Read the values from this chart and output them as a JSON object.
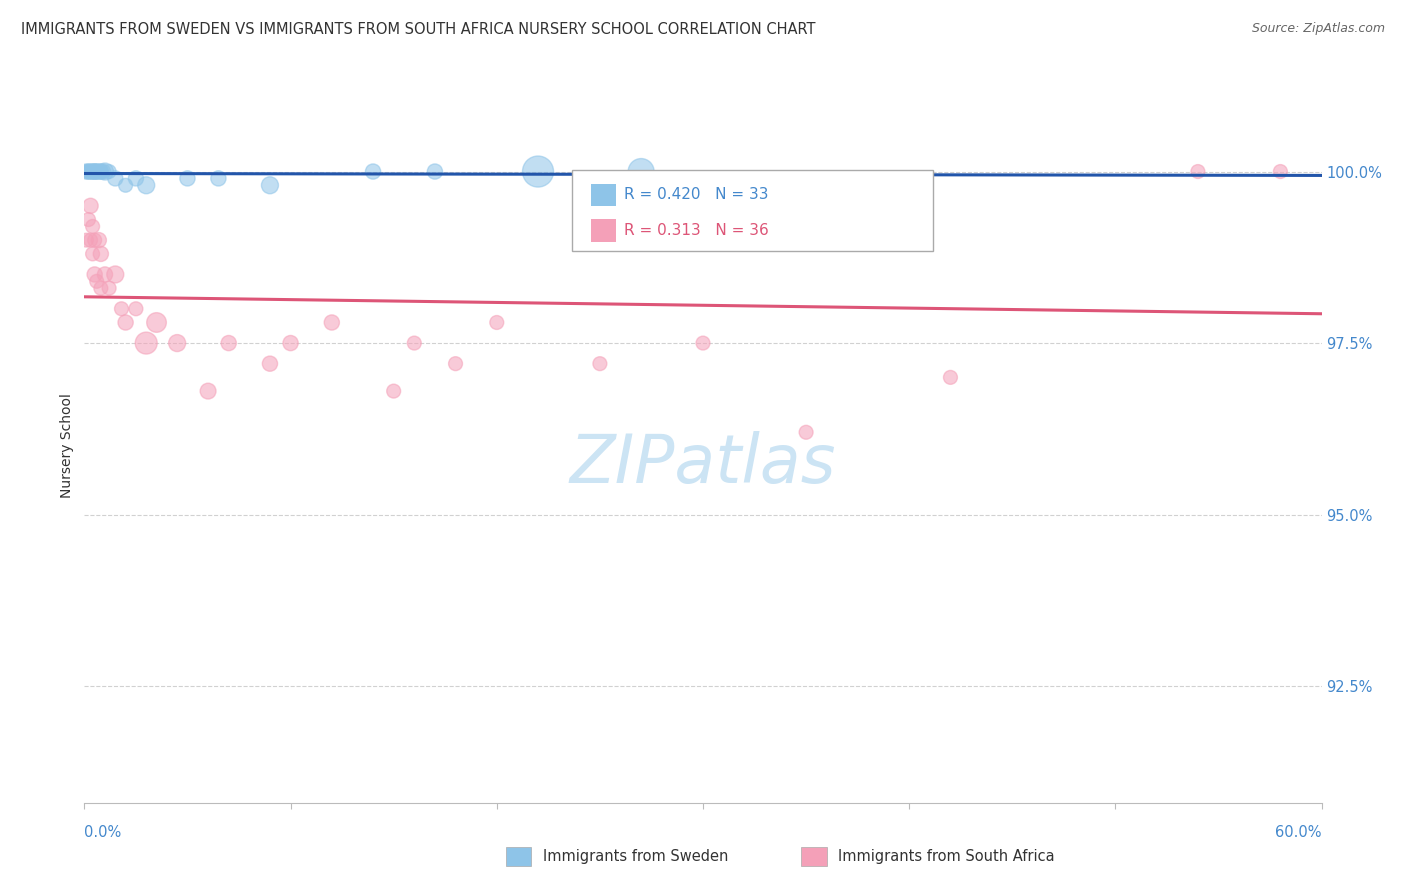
{
  "title": "IMMIGRANTS FROM SWEDEN VS IMMIGRANTS FROM SOUTH AFRICA NURSERY SCHOOL CORRELATION CHART",
  "source": "Source: ZipAtlas.com",
  "ylabel": "Nursery School",
  "ytick_labels": [
    "100.0%",
    "97.5%",
    "95.0%",
    "92.5%"
  ],
  "ytick_values": [
    1.0,
    0.975,
    0.95,
    0.925
  ],
  "xmin": 0.0,
  "xmax": 0.6,
  "ymin": 0.908,
  "ymax": 1.012,
  "legend_r_sweden": "R = 0.420",
  "legend_n_sweden": "N = 33",
  "legend_r_africa": "R = 0.313",
  "legend_n_africa": "N = 36",
  "color_sweden": "#8ec4e8",
  "color_africa": "#f4a0b8",
  "color_sweden_line": "#2255aa",
  "color_africa_line": "#dd5577",
  "watermark_color": "#cce4f4",
  "grid_color": "#cccccc",
  "sweden_x": [
    0.001,
    0.002,
    0.002,
    0.003,
    0.003,
    0.003,
    0.004,
    0.004,
    0.004,
    0.005,
    0.005,
    0.005,
    0.006,
    0.006,
    0.006,
    0.007,
    0.007,
    0.008,
    0.008,
    0.009,
    0.01,
    0.012,
    0.015,
    0.02,
    0.025,
    0.03,
    0.05,
    0.065,
    0.09,
    0.14,
    0.17,
    0.22,
    0.27
  ],
  "sweden_y": [
    1.0,
    1.0,
    1.0,
    1.0,
    1.0,
    1.0,
    1.0,
    1.0,
    1.0,
    1.0,
    1.0,
    1.0,
    1.0,
    1.0,
    1.0,
    1.0,
    1.0,
    1.0,
    1.0,
    1.0,
    1.0,
    1.0,
    0.999,
    0.998,
    0.999,
    0.998,
    0.999,
    0.999,
    0.998,
    1.0,
    1.0,
    1.0,
    1.0
  ],
  "sweden_sizes": [
    120,
    100,
    120,
    100,
    120,
    100,
    100,
    120,
    100,
    120,
    100,
    120,
    120,
    100,
    100,
    120,
    100,
    120,
    100,
    120,
    150,
    100,
    120,
    100,
    120,
    150,
    120,
    120,
    150,
    120,
    120,
    500,
    350
  ],
  "africa_x": [
    0.001,
    0.002,
    0.003,
    0.003,
    0.004,
    0.004,
    0.005,
    0.005,
    0.006,
    0.007,
    0.008,
    0.008,
    0.01,
    0.012,
    0.015,
    0.018,
    0.02,
    0.025,
    0.03,
    0.035,
    0.045,
    0.06,
    0.07,
    0.09,
    0.1,
    0.12,
    0.15,
    0.16,
    0.18,
    0.2,
    0.25,
    0.3,
    0.35,
    0.42,
    0.54,
    0.58
  ],
  "africa_y": [
    0.99,
    0.993,
    0.99,
    0.995,
    0.988,
    0.992,
    0.985,
    0.99,
    0.984,
    0.99,
    0.983,
    0.988,
    0.985,
    0.983,
    0.985,
    0.98,
    0.978,
    0.98,
    0.975,
    0.978,
    0.975,
    0.968,
    0.975,
    0.972,
    0.975,
    0.978,
    0.968,
    0.975,
    0.972,
    0.978,
    0.972,
    0.975,
    0.962,
    0.97,
    1.0,
    1.0
  ],
  "africa_sizes": [
    100,
    100,
    100,
    120,
    100,
    100,
    120,
    100,
    100,
    120,
    100,
    120,
    120,
    100,
    150,
    100,
    120,
    100,
    250,
    200,
    150,
    130,
    120,
    120,
    120,
    120,
    100,
    100,
    100,
    100,
    100,
    100,
    100,
    100,
    100,
    100
  ]
}
